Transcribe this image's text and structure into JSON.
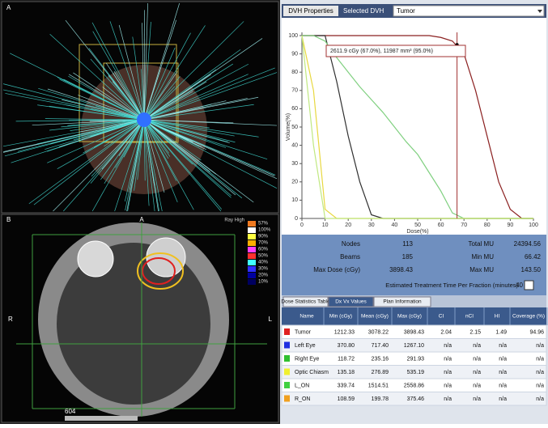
{
  "panels": {
    "a_label": "A",
    "b_label": "B",
    "b_top": "A",
    "b_left": "R",
    "b_right": "L",
    "b_bottom": "604",
    "colorbar_title": "Ray High",
    "colorbar_labels": [
      "57%",
      "100%",
      "90%",
      "70%",
      "60%",
      "50%",
      "40%",
      "30%",
      "20%",
      "10%"
    ],
    "colorbar_colors": [
      "#f07a20",
      "#ffffff",
      "#ffff40",
      "#ffb000",
      "#ff40ff",
      "#ff3030",
      "#40ffff",
      "#3030ff",
      "#0000a0",
      "#000060"
    ]
  },
  "dvh_toolbar": {
    "properties": "DVH Properties",
    "selected_label": "Selected DVH",
    "selected": "Tumor"
  },
  "chart_data": {
    "type": "line",
    "x_label": "Dose(%)",
    "y_label": "Volume(%)",
    "annotation": "2611.9 cGy (67.0%), 11987 mm³ (95.0%)",
    "marker_x": 67,
    "marker_y": 95,
    "x": [
      0,
      5,
      10,
      15,
      20,
      25,
      30,
      35,
      40,
      45,
      50,
      55,
      60,
      65,
      70,
      75,
      80,
      85,
      90,
      95,
      100
    ],
    "series": [
      {
        "color": "#8b2020",
        "values": [
          100,
          100,
          100,
          100,
          100,
          100,
          100,
          100,
          100,
          100,
          100,
          100,
          99,
          97,
          90,
          70,
          45,
          20,
          5,
          0,
          0
        ]
      },
      {
        "color": "#303030",
        "values": [
          100,
          100,
          100,
          75,
          45,
          20,
          2,
          0,
          0,
          0,
          0,
          0,
          0,
          0,
          0,
          0,
          0,
          0,
          0,
          0,
          0
        ]
      },
      {
        "color": "#80d080",
        "values": [
          100,
          100,
          97,
          88,
          80,
          72,
          65,
          58,
          50,
          42,
          35,
          25,
          15,
          3,
          0,
          0,
          0,
          0,
          0,
          0,
          0
        ]
      },
      {
        "color": "#e8d840",
        "values": [
          100,
          70,
          5,
          0,
          0,
          0,
          0,
          0,
          0,
          0,
          0,
          0,
          0,
          0,
          0,
          0,
          0,
          0,
          0,
          0,
          0
        ]
      },
      {
        "color": "#c0e880",
        "values": [
          100,
          40,
          0,
          0,
          0,
          0,
          0,
          0,
          0,
          0,
          0,
          0,
          0,
          0,
          0,
          0,
          0,
          0,
          0,
          0,
          0
        ]
      }
    ],
    "xlim": [
      0,
      100
    ],
    "ylim": [
      0,
      100
    ],
    "xticks": [
      0,
      10,
      20,
      30,
      40,
      50,
      60,
      70,
      80,
      90,
      100
    ],
    "yticks": [
      0,
      10,
      20,
      30,
      40,
      50,
      60,
      70,
      80,
      90,
      100
    ]
  },
  "stats": {
    "rows": [
      [
        "Nodes",
        "113",
        "Total MU",
        "24394.56"
      ],
      [
        "Beams",
        "185",
        "Min MU",
        "66.42"
      ],
      [
        "Max Dose (cGy)",
        "3898.43",
        "Max MU",
        "143.50"
      ]
    ],
    "time_label": "Estimated Treatment Time Per Fraction (minutes)",
    "time_value": "40"
  },
  "table": {
    "tabs": [
      "Dose Statistics Table",
      "Dx Vx Values",
      "Plan Information"
    ],
    "header": [
      "Name",
      "Min (cGy)",
      "Mean (cGy)",
      "Max (cGy)",
      "CI",
      "nCI",
      "HI",
      "Coverage (%)"
    ],
    "row_colors": [
      "#e02020",
      "#2030e0",
      "#30c030",
      "#f0f030",
      "#40d040",
      "#f0a020"
    ],
    "rows": [
      [
        "Tumor",
        "1212.33",
        "3078.22",
        "3898.43",
        "2.04",
        "2.15",
        "1.49",
        "94.96"
      ],
      [
        "Left Eye",
        "370.80",
        "717.40",
        "1267.10",
        "n/a",
        "n/a",
        "n/a",
        "n/a"
      ],
      [
        "Right Eye",
        "118.72",
        "235.16",
        "291.93",
        "n/a",
        "n/a",
        "n/a",
        "n/a"
      ],
      [
        "Optic Chiasm",
        "135.18",
        "276.89",
        "535.19",
        "n/a",
        "n/a",
        "n/a",
        "n/a"
      ],
      [
        "L_ON",
        "339.74",
        "1514.51",
        "2558.86",
        "n/a",
        "n/a",
        "n/a",
        "n/a"
      ],
      [
        "R_ON",
        "108.59",
        "199.78",
        "375.46",
        "n/a",
        "n/a",
        "n/a",
        "n/a"
      ]
    ]
  }
}
